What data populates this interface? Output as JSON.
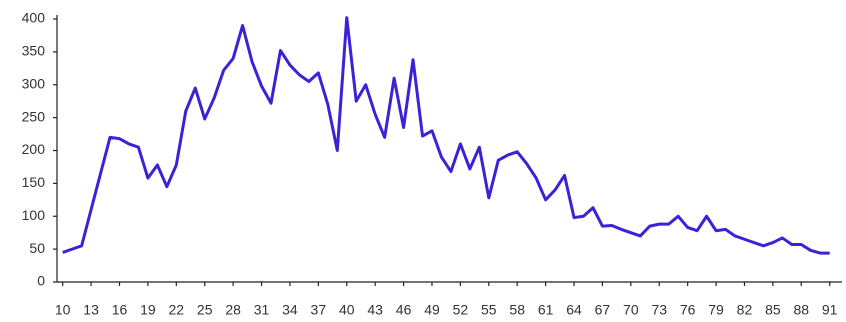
{
  "chart_data": {
    "type": "line",
    "color": "#3a22d8",
    "x": [
      10,
      11,
      12,
      13,
      14,
      15,
      16,
      17,
      18,
      19,
      20,
      21,
      22,
      23,
      24,
      25,
      26,
      27,
      28,
      29,
      30,
      31,
      32,
      33,
      34,
      35,
      36,
      37,
      38,
      39,
      40,
      41,
      42,
      43,
      44,
      45,
      46,
      47,
      48,
      49,
      50,
      51,
      52,
      53,
      54,
      55,
      56,
      57,
      58,
      59,
      60,
      61,
      62,
      63,
      64,
      65,
      66,
      67,
      68,
      69,
      70,
      71,
      72,
      73,
      74,
      75,
      76,
      77,
      78,
      79,
      80,
      81,
      82,
      83,
      84,
      85,
      86,
      87,
      88,
      89,
      90,
      91
    ],
    "values": [
      45,
      50,
      55,
      110,
      165,
      220,
      218,
      210,
      205,
      158,
      178,
      145,
      178,
      260,
      295,
      248,
      280,
      322,
      340,
      390,
      335,
      298,
      272,
      352,
      330,
      315,
      305,
      318,
      270,
      200,
      402,
      275,
      300,
      255,
      220,
      310,
      235,
      338,
      222,
      230,
      190,
      168,
      210,
      172,
      205,
      128,
      185,
      193,
      198,
      180,
      158,
      125,
      140,
      162,
      98,
      100,
      113,
      85,
      86,
      80,
      75,
      70,
      85,
      88,
      88,
      100,
      83,
      78,
      100,
      78,
      80,
      70,
      65,
      60,
      55,
      60,
      67,
      57,
      57,
      48,
      44,
      44
    ],
    "xlim": [
      9.4,
      92.3
    ],
    "xticks": [
      10,
      13,
      16,
      19,
      22,
      25,
      28,
      31,
      34,
      37,
      40,
      43,
      46,
      49,
      52,
      55,
      58,
      61,
      64,
      67,
      70,
      73,
      76,
      79,
      82,
      85,
      88,
      91
    ],
    "ylim": [
      0,
      400
    ],
    "yticks": [
      0,
      50,
      100,
      150,
      200,
      250,
      300,
      350,
      400
    ]
  }
}
